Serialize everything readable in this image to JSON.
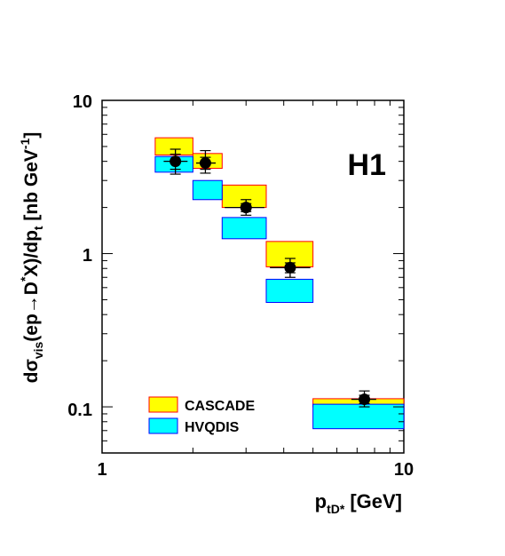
{
  "chart_data": {
    "type": "scatter",
    "xscale": "log",
    "yscale": "log",
    "xlim": [
      1,
      10
    ],
    "ylim": [
      0.05,
      10
    ],
    "grid": false,
    "legend_position": "bottom-left",
    "stamp": "H1",
    "xlabel": {
      "main": "p",
      "sub": "tD*",
      "unit": "[GeV]"
    },
    "ylabel": {
      "p1": "dσ",
      "sub_vis": "vis",
      "p2": "(ep→D",
      "sup_star": "*",
      "p3": "X)/dp",
      "sub_t": "t",
      "p4": " [nb GeV",
      "sup_m1": "-1",
      "p5": "]"
    },
    "x_ticks": [
      {
        "value": 1,
        "label": "1"
      },
      {
        "value": 10,
        "label": "10"
      }
    ],
    "y_ticks": [
      {
        "value": 0.1,
        "label": "0.1"
      },
      {
        "value": 1,
        "label": "1"
      },
      {
        "value": 10,
        "label": "10"
      }
    ],
    "series": [
      {
        "name": "CASCADE",
        "kind": "band",
        "color": "#ffff00",
        "edge": "#ff0000",
        "bins": [
          {
            "xlo": 1.5,
            "xhi": 2.0,
            "ylo": 4.4,
            "yhi": 5.7
          },
          {
            "xlo": 2.0,
            "xhi": 2.5,
            "ylo": 3.6,
            "yhi": 4.5
          },
          {
            "xlo": 2.5,
            "xhi": 3.5,
            "ylo": 2.0,
            "yhi": 2.8
          },
          {
            "xlo": 3.5,
            "xhi": 5.0,
            "ylo": 0.82,
            "yhi": 1.2
          },
          {
            "xlo": 5.0,
            "xhi": 10.0,
            "ylo": 0.1,
            "yhi": 0.113
          }
        ]
      },
      {
        "name": "HVQDIS",
        "kind": "band",
        "color": "#00ffff",
        "edge": "#0000ff",
        "bins": [
          {
            "xlo": 1.5,
            "xhi": 2.0,
            "ylo": 3.4,
            "yhi": 4.3
          },
          {
            "xlo": 2.0,
            "xhi": 2.5,
            "ylo": 2.25,
            "yhi": 3.0
          },
          {
            "xlo": 2.5,
            "xhi": 3.5,
            "ylo": 1.25,
            "yhi": 1.72
          },
          {
            "xlo": 3.5,
            "xhi": 5.0,
            "ylo": 0.48,
            "yhi": 0.68
          },
          {
            "xlo": 5.0,
            "xhi": 10.0,
            "ylo": 0.072,
            "yhi": 0.104
          }
        ]
      },
      {
        "kind": "points",
        "color": "#000000",
        "points": [
          {
            "x": 1.75,
            "y": 4.0,
            "xlo": 1.6,
            "xhi": 1.92,
            "ylo": 3.3,
            "yhi": 4.8,
            "ylo_in": 3.55,
            "yhi_in": 4.45
          },
          {
            "x": 2.2,
            "y": 3.9,
            "xlo": 2.05,
            "xhi": 2.38,
            "ylo": 3.35,
            "yhi": 4.7,
            "ylo_in": 3.55,
            "yhi_in": 4.25
          },
          {
            "x": 3.0,
            "y": 2.0,
            "xlo": 2.55,
            "xhi": 3.45,
            "ylo": 1.78,
            "yhi": 2.25,
            "ylo_in": 1.88,
            "yhi_in": 2.12
          },
          {
            "x": 4.2,
            "y": 0.81,
            "xlo": 3.6,
            "xhi": 4.9,
            "ylo": 0.7,
            "yhi": 0.93,
            "ylo_in": 0.75,
            "yhi_in": 0.87
          },
          {
            "x": 7.4,
            "y": 0.112,
            "xlo": 6.7,
            "xhi": 8.1,
            "ylo": 0.1,
            "yhi": 0.127,
            "ylo_in": 0.105,
            "yhi_in": 0.119
          }
        ]
      }
    ]
  }
}
